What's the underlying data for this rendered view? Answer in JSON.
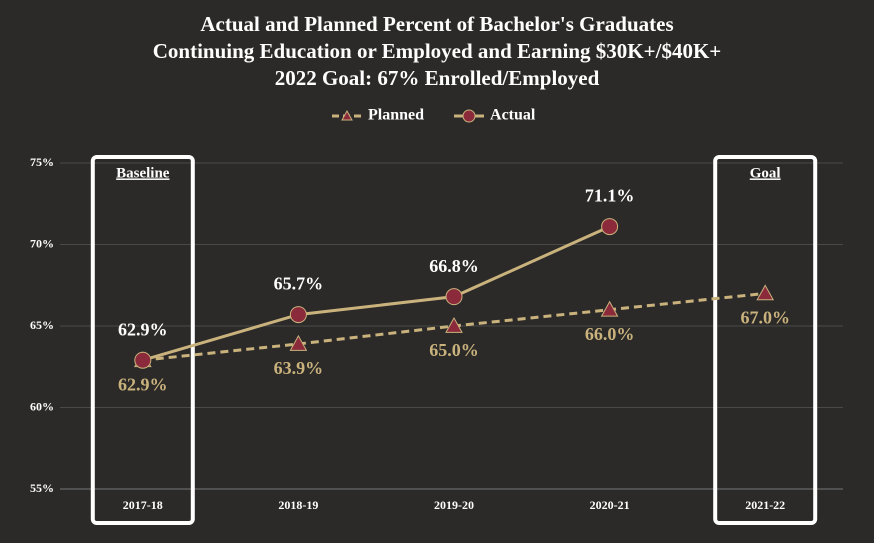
{
  "chart_data": {
    "type": "line",
    "title": [
      "Actual and Planned Percent of Bachelor's Graduates",
      "Continuing Education or Employed and Earning $30K+/$40K+",
      "2022 Goal: 67% Enrolled/Employed"
    ],
    "categories": [
      "2017-18",
      "2018-19",
      "2019-20",
      "2020-21",
      "2021-22"
    ],
    "series": [
      {
        "name": "Planned",
        "color": "#c9b27c",
        "marker_color": "#8b2a3a",
        "dashed": true,
        "marker": "triangle",
        "values": [
          62.9,
          63.9,
          65.0,
          66.0,
          67.0
        ],
        "value_labels": [
          "62.9%",
          "63.9%",
          "65.0%",
          "66.0%",
          "67.0%"
        ]
      },
      {
        "name": "Actual",
        "color": "#c9b27c",
        "marker_color": "#8b2a3a",
        "dashed": false,
        "marker": "circle",
        "values": [
          62.9,
          65.7,
          66.8,
          71.1,
          null
        ],
        "value_labels": [
          "62.9%",
          "65.7%",
          "66.8%",
          "71.1%",
          null
        ]
      }
    ],
    "ylim": [
      55,
      75
    ],
    "yticks": [
      {
        "value": 55,
        "label": "55%"
      },
      {
        "value": 60,
        "label": "60%"
      },
      {
        "value": 65,
        "label": "65%"
      },
      {
        "value": 70,
        "label": "70%"
      },
      {
        "value": 75,
        "label": "75%"
      }
    ],
    "grid": true,
    "legend": "top",
    "annotations": [
      "Baseline",
      "Goal"
    ]
  }
}
